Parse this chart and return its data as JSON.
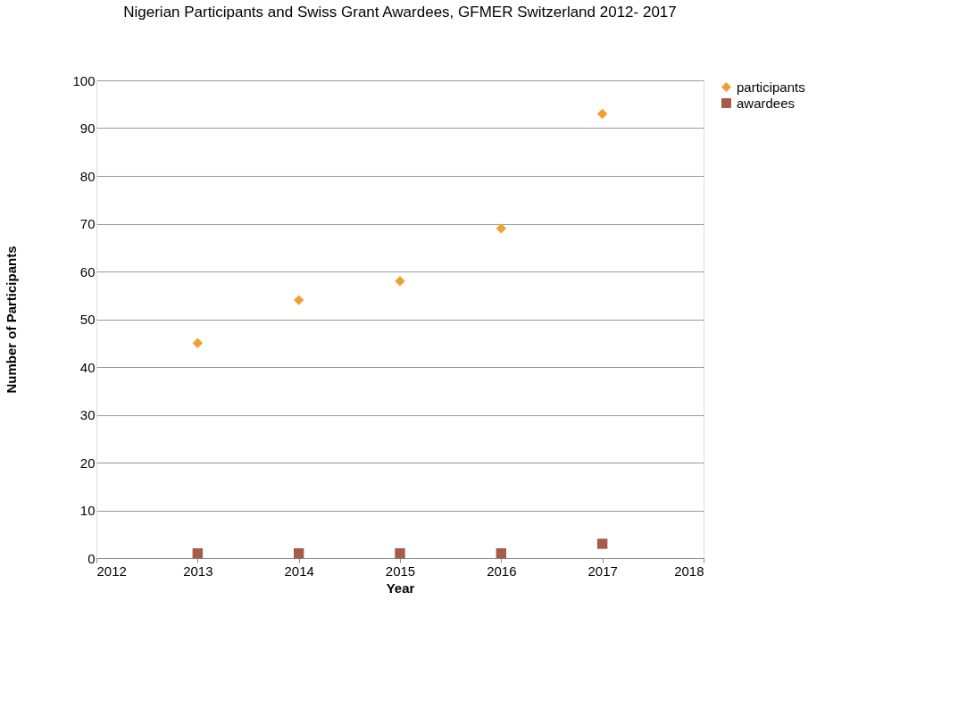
{
  "chart_data": {
    "type": "scatter",
    "title": "Nigerian Participants and Swiss Grant Awardees, GFMER Switzerland 2012- 2017",
    "xlabel": "Year",
    "ylabel": "Number of Participants",
    "x": [
      2013,
      2014,
      2015,
      2016,
      2017
    ],
    "series": [
      {
        "name": "participants",
        "color": "#f0a030",
        "marker": "diamond",
        "values": [
          45,
          54,
          58,
          69,
          93
        ]
      },
      {
        "name": "awardees",
        "color": "#a65d48",
        "marker": "square",
        "values": [
          1,
          1,
          1,
          1,
          3
        ]
      }
    ],
    "xlim": [
      2012,
      2018
    ],
    "xticks": [
      2012,
      2013,
      2014,
      2015,
      2016,
      2017,
      2018
    ],
    "ylim": [
      0,
      100
    ],
    "yticks": [
      0,
      10,
      20,
      30,
      40,
      50,
      60,
      70,
      80,
      90,
      100
    ],
    "grid": "y",
    "legend": "right"
  }
}
